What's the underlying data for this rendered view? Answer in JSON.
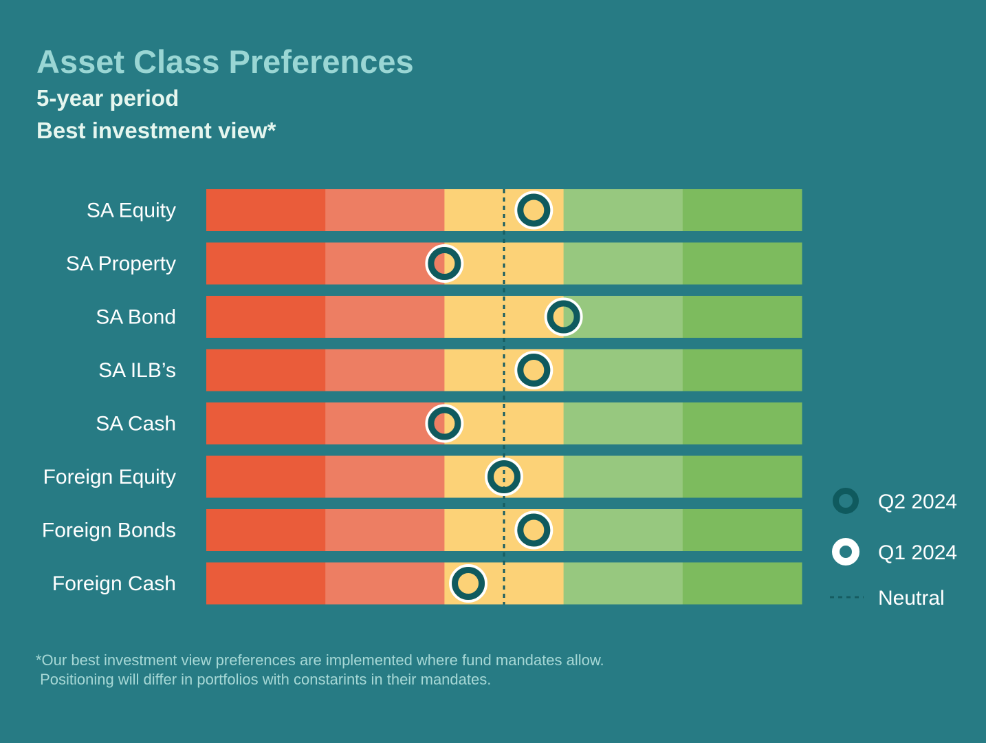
{
  "title": "Asset Class Preferences",
  "subtitle_1": "5-year period",
  "subtitle_2": "Best investment view*",
  "footnote_line1": "*Our best investment view preferences are implemented where fund mandates allow.",
  "footnote_line2": " Positioning will differ in portfolios with constarints in their mandates.",
  "colors": {
    "background": "#277b84",
    "band_colors": [
      "#ea5c3a",
      "#ed7e63",
      "#fcd277",
      "#97c87f",
      "#7dbb5e"
    ],
    "q2_ring": "#0f5a5e",
    "q1_ring": "#ffffff",
    "neutral_line": "#165c61"
  },
  "chart_data": {
    "type": "dot-scale",
    "scale": {
      "min": 0,
      "max": 5,
      "neutral": 2.5
    },
    "categories": [
      "SA Equity",
      "SA Property",
      "SA Bond",
      "SA ILB’s",
      "SA Cash",
      "Foreign Equity",
      "Foreign Bonds",
      "Foreign Cash"
    ],
    "series": [
      {
        "name": "Q2 2024",
        "marker": "ring-dark",
        "values": [
          2.75,
          2.0,
          3.0,
          2.75,
          2.0,
          2.5,
          2.75,
          2.2
        ]
      },
      {
        "name": "Q1 2024",
        "marker": "ring-white",
        "values": [
          2.75,
          2.0,
          3.0,
          2.75,
          2.0,
          2.5,
          2.75,
          2.2
        ]
      }
    ],
    "legend": {
      "position": "right",
      "items": [
        {
          "label": "Q2 2024",
          "marker": "ring-dark"
        },
        {
          "label": "Q1 2024",
          "marker": "ring-white"
        },
        {
          "label": "Neutral",
          "marker": "dashed-line"
        }
      ]
    }
  }
}
